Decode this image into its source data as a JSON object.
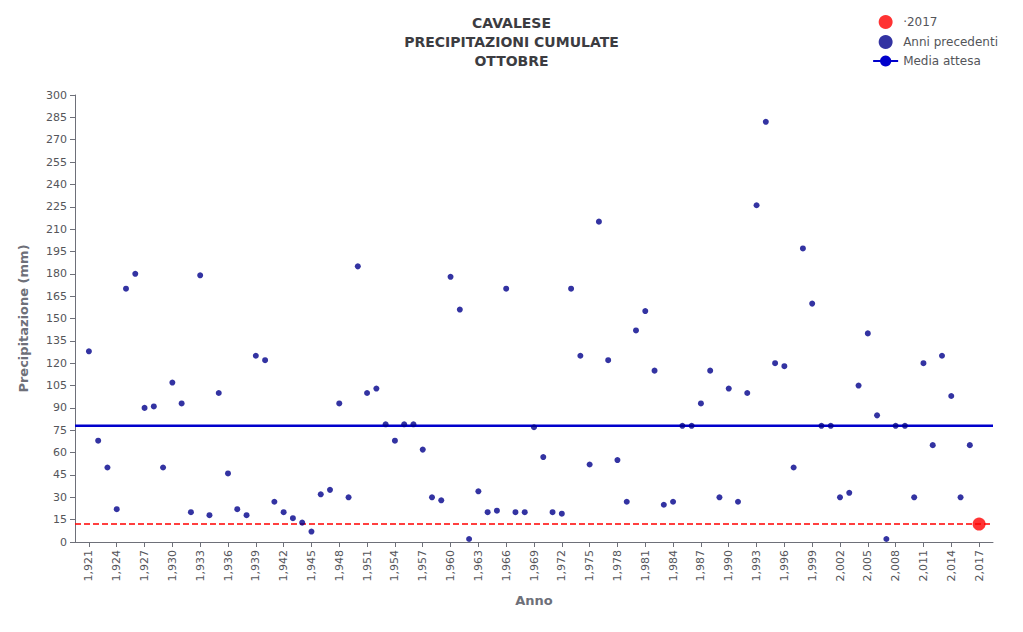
{
  "chart_data": {
    "type": "scatter",
    "title": "CAVALESE\nPRECIPITAZIONI CUMULATE\nOTTOBRE",
    "x_label": "Anno",
    "y_label": "Precipitazione (mm)",
    "series": [
      {
        "name": "·2017",
        "type": "scatter",
        "color": "#ff0000",
        "line_style": "dashed",
        "x": [
          2017
        ],
        "values": [
          12
        ]
      },
      {
        "name": "Anni precedenti",
        "type": "scatter",
        "color": "#00008b",
        "x": [
          1921,
          1922,
          1923,
          1924,
          1925,
          1926,
          1927,
          1928,
          1929,
          1930,
          1931,
          1932,
          1933,
          1934,
          1935,
          1936,
          1937,
          1938,
          1939,
          1940,
          1941,
          1942,
          1943,
          1944,
          1945,
          1946,
          1947,
          1948,
          1949,
          1950,
          1951,
          1952,
          1953,
          1954,
          1955,
          1956,
          1957,
          1958,
          1959,
          1960,
          1961,
          1962,
          1963,
          1964,
          1965,
          1966,
          1967,
          1968,
          1969,
          1970,
          1971,
          1972,
          1973,
          1974,
          1975,
          1976,
          1977,
          1978,
          1979,
          1980,
          1981,
          1982,
          1983,
          1984,
          1985,
          1986,
          1987,
          1988,
          1989,
          1990,
          1991,
          1992,
          1993,
          1994,
          1995,
          1996,
          1997,
          1998,
          1999,
          2000,
          2001,
          2002,
          2003,
          2004,
          2005,
          2006,
          2007,
          2008,
          2009,
          2010,
          2011,
          2012,
          2013,
          2014,
          2015,
          2016
        ],
        "values": [
          128,
          68,
          50,
          22,
          170,
          180,
          90,
          91,
          50,
          107,
          93,
          20,
          179,
          18,
          100,
          46,
          22,
          18,
          125,
          122,
          27,
          20,
          16,
          13,
          7,
          32,
          35,
          93,
          30,
          185,
          100,
          103,
          79,
          68,
          79,
          79,
          62,
          30,
          28,
          178,
          156,
          2,
          34,
          20,
          21,
          170,
          20,
          20,
          77,
          57,
          20,
          19,
          170,
          125,
          52,
          215,
          122,
          55,
          27,
          142,
          155,
          115,
          25,
          27,
          78,
          78,
          93,
          115,
          30,
          103,
          27,
          100,
          226,
          282,
          120,
          118,
          50,
          197,
          160,
          78,
          78,
          30,
          33,
          105,
          140,
          85,
          2,
          78,
          78,
          30,
          120,
          65,
          125,
          98,
          30,
          65
        ]
      },
      {
        "name": "Media attesa",
        "type": "hline",
        "color": "#0000cc",
        "line_style": "solid",
        "values": [
          78
        ]
      }
    ],
    "xlim": [
      1919.5,
      2018.5
    ],
    "xticks": [
      1921,
      1924,
      1927,
      1930,
      1933,
      1936,
      1939,
      1942,
      1945,
      1948,
      1951,
      1954,
      1957,
      1960,
      1963,
      1966,
      1969,
      1972,
      1975,
      1978,
      1981,
      1984,
      1987,
      1990,
      1993,
      1996,
      1999,
      2002,
      2005,
      2008,
      2011,
      2014,
      2017
    ],
    "ylim": [
      0,
      300
    ],
    "yticks": [
      0,
      15,
      30,
      45,
      60,
      75,
      90,
      105,
      120,
      135,
      150,
      165,
      180,
      195,
      210,
      225,
      240,
      255,
      270,
      285,
      300
    ],
    "grid": false,
    "legend": "upper right"
  }
}
